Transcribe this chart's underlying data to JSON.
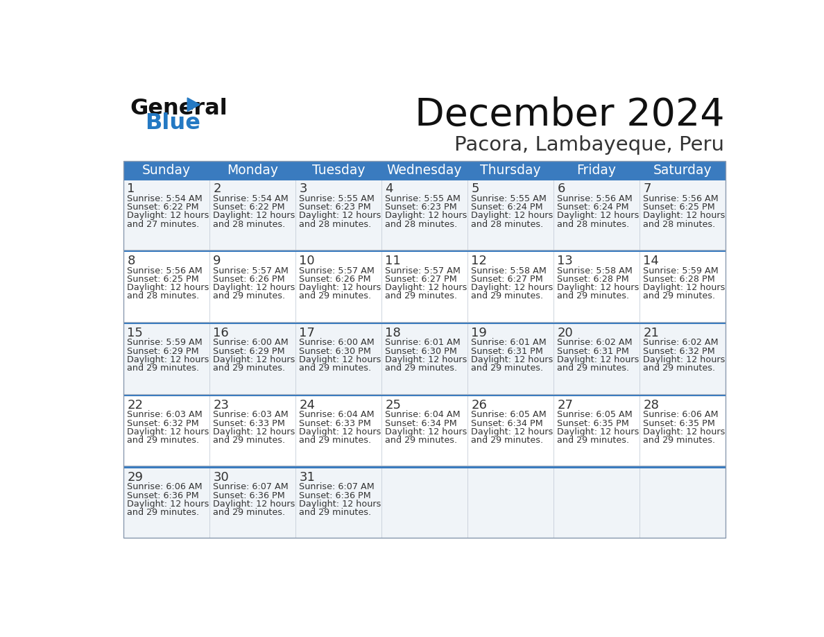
{
  "title": "December 2024",
  "subtitle": "Pacora, Lambayeque, Peru",
  "days_of_week": [
    "Sunday",
    "Monday",
    "Tuesday",
    "Wednesday",
    "Thursday",
    "Friday",
    "Saturday"
  ],
  "header_bg": "#3a7bbf",
  "header_text": "#ffffff",
  "row_bg_odd": "#f0f4f8",
  "row_bg_even": "#ffffff",
  "row_sep_color": "#3a7bbf",
  "text_color": "#333333",
  "day_num_color": "#333333",
  "calendar_data": [
    {
      "day": 1,
      "col": 0,
      "row": 0,
      "sunrise": "5:54 AM",
      "sunset": "6:22 PM",
      "daylight": "12 hours and 27 minutes."
    },
    {
      "day": 2,
      "col": 1,
      "row": 0,
      "sunrise": "5:54 AM",
      "sunset": "6:22 PM",
      "daylight": "12 hours and 28 minutes."
    },
    {
      "day": 3,
      "col": 2,
      "row": 0,
      "sunrise": "5:55 AM",
      "sunset": "6:23 PM",
      "daylight": "12 hours and 28 minutes."
    },
    {
      "day": 4,
      "col": 3,
      "row": 0,
      "sunrise": "5:55 AM",
      "sunset": "6:23 PM",
      "daylight": "12 hours and 28 minutes."
    },
    {
      "day": 5,
      "col": 4,
      "row": 0,
      "sunrise": "5:55 AM",
      "sunset": "6:24 PM",
      "daylight": "12 hours and 28 minutes."
    },
    {
      "day": 6,
      "col": 5,
      "row": 0,
      "sunrise": "5:56 AM",
      "sunset": "6:24 PM",
      "daylight": "12 hours and 28 minutes."
    },
    {
      "day": 7,
      "col": 6,
      "row": 0,
      "sunrise": "5:56 AM",
      "sunset": "6:25 PM",
      "daylight": "12 hours and 28 minutes."
    },
    {
      "day": 8,
      "col": 0,
      "row": 1,
      "sunrise": "5:56 AM",
      "sunset": "6:25 PM",
      "daylight": "12 hours and 28 minutes."
    },
    {
      "day": 9,
      "col": 1,
      "row": 1,
      "sunrise": "5:57 AM",
      "sunset": "6:26 PM",
      "daylight": "12 hours and 29 minutes."
    },
    {
      "day": 10,
      "col": 2,
      "row": 1,
      "sunrise": "5:57 AM",
      "sunset": "6:26 PM",
      "daylight": "12 hours and 29 minutes."
    },
    {
      "day": 11,
      "col": 3,
      "row": 1,
      "sunrise": "5:57 AM",
      "sunset": "6:27 PM",
      "daylight": "12 hours and 29 minutes."
    },
    {
      "day": 12,
      "col": 4,
      "row": 1,
      "sunrise": "5:58 AM",
      "sunset": "6:27 PM",
      "daylight": "12 hours and 29 minutes."
    },
    {
      "day": 13,
      "col": 5,
      "row": 1,
      "sunrise": "5:58 AM",
      "sunset": "6:28 PM",
      "daylight": "12 hours and 29 minutes."
    },
    {
      "day": 14,
      "col": 6,
      "row": 1,
      "sunrise": "5:59 AM",
      "sunset": "6:28 PM",
      "daylight": "12 hours and 29 minutes."
    },
    {
      "day": 15,
      "col": 0,
      "row": 2,
      "sunrise": "5:59 AM",
      "sunset": "6:29 PM",
      "daylight": "12 hours and 29 minutes."
    },
    {
      "day": 16,
      "col": 1,
      "row": 2,
      "sunrise": "6:00 AM",
      "sunset": "6:29 PM",
      "daylight": "12 hours and 29 minutes."
    },
    {
      "day": 17,
      "col": 2,
      "row": 2,
      "sunrise": "6:00 AM",
      "sunset": "6:30 PM",
      "daylight": "12 hours and 29 minutes."
    },
    {
      "day": 18,
      "col": 3,
      "row": 2,
      "sunrise": "6:01 AM",
      "sunset": "6:30 PM",
      "daylight": "12 hours and 29 minutes."
    },
    {
      "day": 19,
      "col": 4,
      "row": 2,
      "sunrise": "6:01 AM",
      "sunset": "6:31 PM",
      "daylight": "12 hours and 29 minutes."
    },
    {
      "day": 20,
      "col": 5,
      "row": 2,
      "sunrise": "6:02 AM",
      "sunset": "6:31 PM",
      "daylight": "12 hours and 29 minutes."
    },
    {
      "day": 21,
      "col": 6,
      "row": 2,
      "sunrise": "6:02 AM",
      "sunset": "6:32 PM",
      "daylight": "12 hours and 29 minutes."
    },
    {
      "day": 22,
      "col": 0,
      "row": 3,
      "sunrise": "6:03 AM",
      "sunset": "6:32 PM",
      "daylight": "12 hours and 29 minutes."
    },
    {
      "day": 23,
      "col": 1,
      "row": 3,
      "sunrise": "6:03 AM",
      "sunset": "6:33 PM",
      "daylight": "12 hours and 29 minutes."
    },
    {
      "day": 24,
      "col": 2,
      "row": 3,
      "sunrise": "6:04 AM",
      "sunset": "6:33 PM",
      "daylight": "12 hours and 29 minutes."
    },
    {
      "day": 25,
      "col": 3,
      "row": 3,
      "sunrise": "6:04 AM",
      "sunset": "6:34 PM",
      "daylight": "12 hours and 29 minutes."
    },
    {
      "day": 26,
      "col": 4,
      "row": 3,
      "sunrise": "6:05 AM",
      "sunset": "6:34 PM",
      "daylight": "12 hours and 29 minutes."
    },
    {
      "day": 27,
      "col": 5,
      "row": 3,
      "sunrise": "6:05 AM",
      "sunset": "6:35 PM",
      "daylight": "12 hours and 29 minutes."
    },
    {
      "day": 28,
      "col": 6,
      "row": 3,
      "sunrise": "6:06 AM",
      "sunset": "6:35 PM",
      "daylight": "12 hours and 29 minutes."
    },
    {
      "day": 29,
      "col": 0,
      "row": 4,
      "sunrise": "6:06 AM",
      "sunset": "6:36 PM",
      "daylight": "12 hours and 29 minutes."
    },
    {
      "day": 30,
      "col": 1,
      "row": 4,
      "sunrise": "6:07 AM",
      "sunset": "6:36 PM",
      "daylight": "12 hours and 29 minutes."
    },
    {
      "day": 31,
      "col": 2,
      "row": 4,
      "sunrise": "6:07 AM",
      "sunset": "6:36 PM",
      "daylight": "12 hours and 29 minutes."
    }
  ],
  "logo_general_color": "#111111",
  "logo_blue_color": "#2479c3",
  "logo_triangle_color": "#2479c3",
  "fig_width": 11.88,
  "fig_height": 9.18,
  "dpi": 100
}
